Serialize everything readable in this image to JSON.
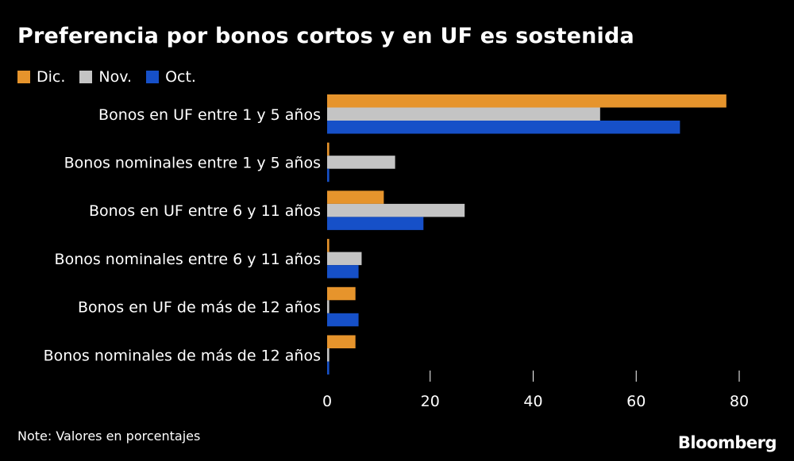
{
  "title": "Preferencia por bonos cortos y en UF es sostenida",
  "note": "Note: Valores en porcentajes",
  "logo": "Bloomberg",
  "chart_data": {
    "type": "bar",
    "orientation": "horizontal",
    "categories": [
      "Bonos en UF entre 1 y 5 años",
      "Bonos nominales entre 1 y 5 años",
      "Bonos en UF entre 6 y 11 años",
      "Bonos nominales entre 6 y 11 años",
      "Bonos en UF de más de 12 años",
      "Bonos nominales de más de 12 años"
    ],
    "series": [
      {
        "name": "Dic.",
        "color": "#e6942c",
        "values": [
          77.5,
          0.4,
          11,
          0.4,
          5.5,
          5.5
        ]
      },
      {
        "name": "Nov.",
        "color": "#c4c4c4",
        "values": [
          53,
          13.2,
          26.7,
          6.7,
          0.4,
          0.4
        ]
      },
      {
        "name": "Oct.",
        "color": "#1650c8",
        "values": [
          68.5,
          0.4,
          18.7,
          6.1,
          6.1,
          0.4
        ]
      }
    ],
    "xlim": [
      0,
      80
    ],
    "xticks": [
      "0",
      "20",
      "40",
      "60",
      "80"
    ],
    "xtick_values": [
      0,
      20,
      40,
      60,
      80
    ],
    "legend_position": "top-left",
    "grid": false
  }
}
